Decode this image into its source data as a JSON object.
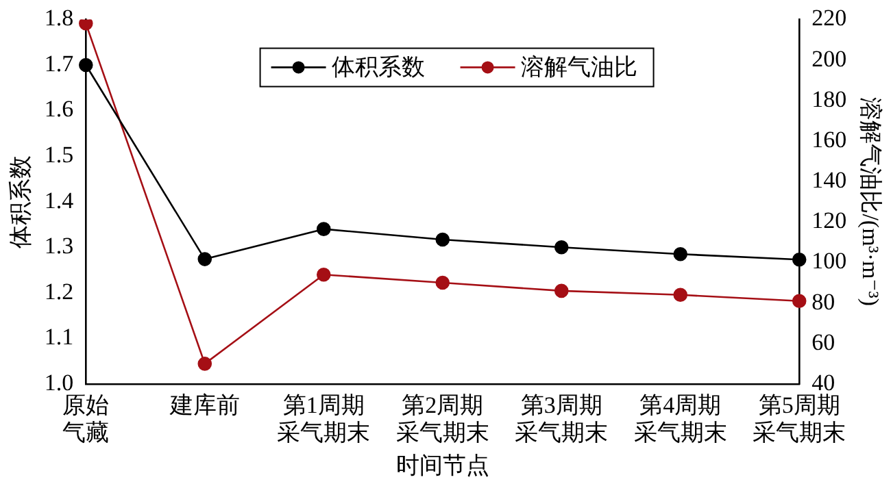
{
  "chart_data": {
    "type": "line",
    "xlabel": "时间节点",
    "ylabel": "体积系数",
    "y2label": "溶解气油比/(m³·m⁻³)",
    "categories": [
      "原始气藏",
      "建库前",
      "第1周期采气期末",
      "第2周期采气期末",
      "第3周期采气期末",
      "第4周期采气期末",
      "第5周期采气期末"
    ],
    "series": [
      {
        "name": "体积系数",
        "color": "#000000",
        "values": [
          1.7,
          1.274,
          1.34,
          1.317,
          1.3,
          1.285,
          1.273
        ]
      },
      {
        "name": "溶解气油比",
        "color": "#a50f15",
        "axis": "y2",
        "values": [
          218,
          50,
          94,
          90,
          86,
          84,
          81
        ]
      }
    ],
    "ylim": [
      1.0,
      1.8
    ],
    "yticks": [
      {
        "value": 1,
        "label": "1.0"
      },
      1.1,
      1.2,
      1.3,
      1.4,
      1.5,
      1.6,
      1.7,
      1.8
    ],
    "y2lim": [
      40,
      220
    ],
    "y2ticks": [
      40,
      60,
      80,
      100,
      120,
      140,
      160,
      180,
      200,
      220
    ],
    "marker": "circle",
    "line_style": "solid",
    "legend": "top",
    "grid": false
  }
}
